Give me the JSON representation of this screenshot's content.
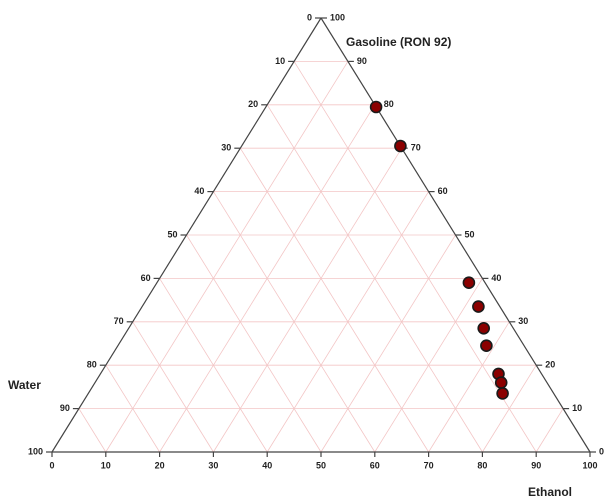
{
  "chart_data": {
    "type": "ternary-scatter",
    "title": "",
    "axes": {
      "gasoline": {
        "label": "Gasoline  (RON 92)",
        "ticks": [
          "0",
          "10",
          "20",
          "30",
          "40",
          "50",
          "60",
          "70",
          "80",
          "90",
          "100"
        ]
      },
      "water": {
        "label": "Water",
        "ticks": [
          "0",
          "10",
          "20",
          "30",
          "40",
          "50",
          "60",
          "70",
          "80",
          "90",
          "100"
        ]
      },
      "ethanol": {
        "label": "Ethanol",
        "ticks": [
          "0",
          "10",
          "20",
          "30",
          "40",
          "50",
          "60",
          "70",
          "80",
          "90",
          "100"
        ]
      }
    },
    "grid": true,
    "range": [
      0,
      100
    ],
    "colors": {
      "grid": "#f3c6c6",
      "axis": "#444444",
      "marker_fill": "#8b0000",
      "marker_edge": "#1a1a1a"
    },
    "points": [
      {
        "gasoline": 79.5,
        "water": 0.0,
        "ethanol": 20.5
      },
      {
        "gasoline": 70.5,
        "water": 0.0,
        "ethanol": 29.5
      },
      {
        "gasoline": 39.0,
        "water": 3.0,
        "ethanol": 58.0
      },
      {
        "gasoline": 33.5,
        "water": 4.0,
        "ethanol": 62.5
      },
      {
        "gasoline": 28.5,
        "water": 5.5,
        "ethanol": 66.0
      },
      {
        "gasoline": 24.5,
        "water": 7.0,
        "ethanol": 68.5
      },
      {
        "gasoline": 18.0,
        "water": 8.0,
        "ethanol": 74.0
      },
      {
        "gasoline": 16.0,
        "water": 8.5,
        "ethanol": 75.5
      },
      {
        "gasoline": 13.5,
        "water": 9.5,
        "ethanol": 77.0
      }
    ]
  }
}
